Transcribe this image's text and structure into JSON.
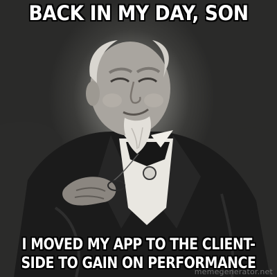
{
  "meme": {
    "top_text": "BACK IN MY DAY, SON",
    "bottom_text_line1": "I MOVED MY APP TO THE CLIENT-",
    "bottom_text_line2": "SIDE TO GAIN ON PERFORMANCE",
    "watermark": "memegenerator.net"
  },
  "colors": {
    "background": "#1c1c1c",
    "caption_text": "#ffffff",
    "caption_outline": "#000000"
  }
}
